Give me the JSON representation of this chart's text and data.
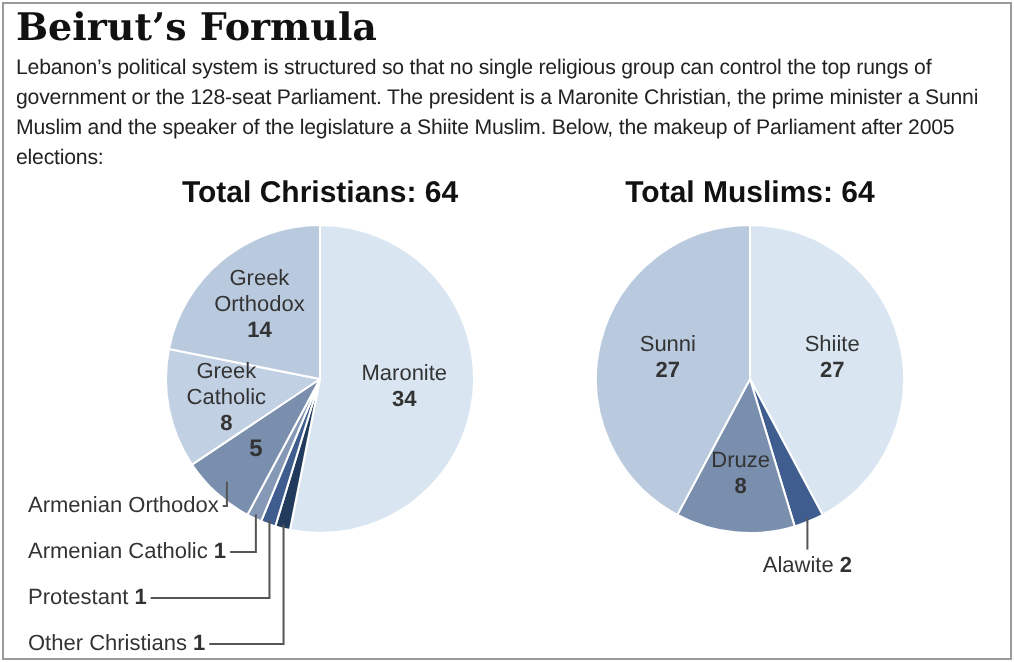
{
  "chart_data": [
    {
      "type": "pie",
      "title": "Total Christians: 64",
      "annotations": [
        "Beirut’s Formula",
        "Lebanon’s political system is structured so that no single religious group can control the top rungs of government or the 128-seat Parliament. The president is a Maronite Christian, the prime minister a Sunni Muslim and the speaker of the legislature a Shiite Muslim. Below, the makeup of Parliament after 2005 elections:"
      ],
      "categories": [
        "Maronite",
        "Other Christians",
        "Protestant",
        "Armenian Catholic",
        "Armenian Orthodox",
        "Greek Catholic",
        "Greek Orthodox"
      ],
      "values": [
        34,
        1,
        1,
        1,
        5,
        8,
        14
      ],
      "colors": [
        "#d9e6f1",
        "#223a5c",
        "#3f5e8f",
        "#8598b5",
        "#7a8fae",
        "#c2d0e3",
        "#b9c9de"
      ],
      "data_labels": true,
      "legend": false
    },
    {
      "type": "pie",
      "title": "Total Muslims: 64",
      "categories": [
        "Shiite",
        "Alawite",
        "Druze",
        "Sunni"
      ],
      "values": [
        27,
        2,
        8,
        27
      ],
      "colors": [
        "#d9e6f1",
        "#3f5e8f",
        "#7a8fae",
        "#b9c9de"
      ],
      "data_labels": true,
      "legend": false
    }
  ]
}
